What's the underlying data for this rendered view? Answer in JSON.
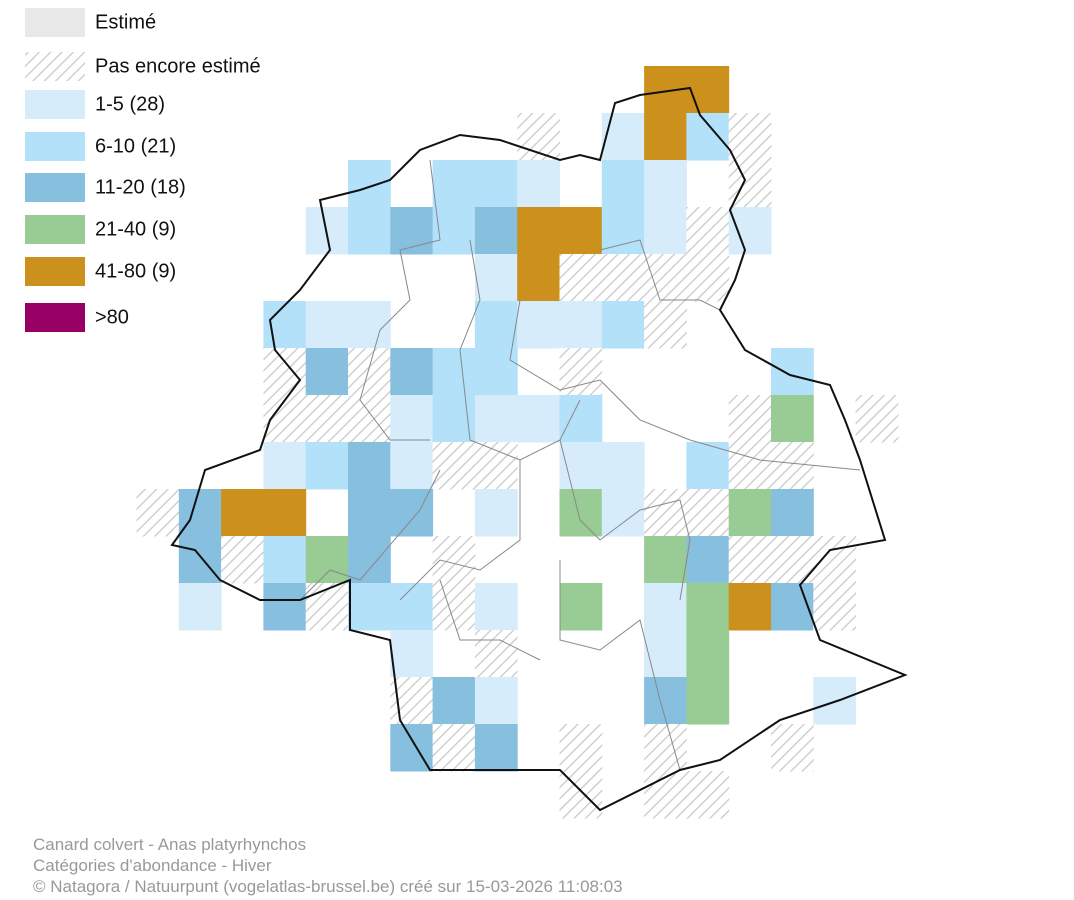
{
  "legend": [
    {
      "label": "Estimé",
      "color": "#e8e8e8"
    },
    {
      "label": "Pas encore estimé"
    },
    {
      "label": "1-5 (28)",
      "color": "#d6ecfa"
    },
    {
      "label": "6-10 (21)",
      "color": "#b3e1f9"
    },
    {
      "label": "11-20 (18)",
      "color": "#87bfdf"
    },
    {
      "label": "21-40 (9)",
      "color": "#99cc95"
    },
    {
      "label": "41-80 (9)",
      "color": "#cc911d"
    },
    {
      "label": ">80",
      "color": "#990066"
    }
  ],
  "footer": [
    "Canard colvert - Anas platyrhynchos",
    "Catégories d'abondance - Hiver",
    "© Natagora / Natuurpunt (vogelatlas-brussel.be) créé sur 15-03-2026 11:08:03"
  ]
}
